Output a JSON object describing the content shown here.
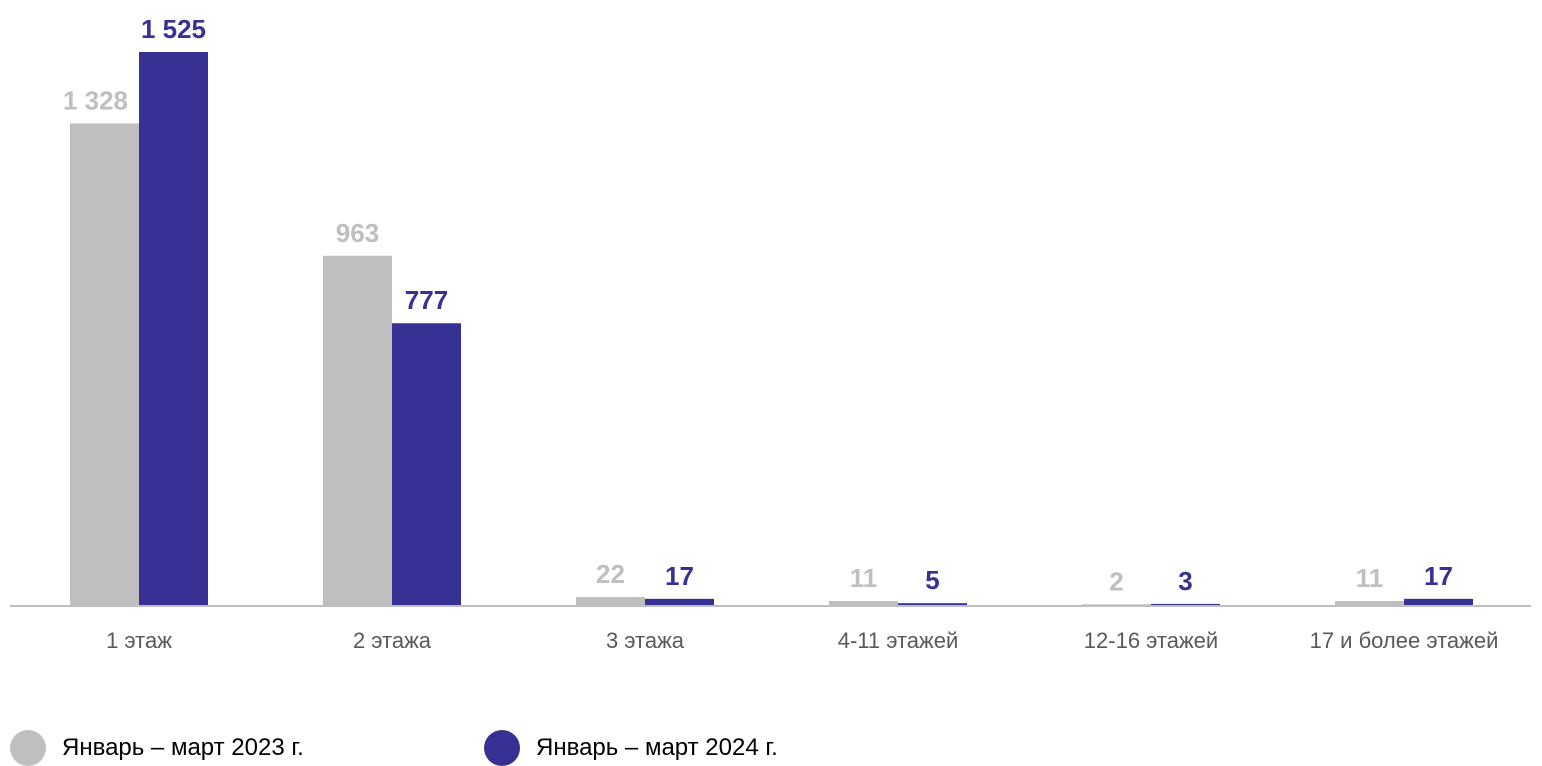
{
  "chart_data": {
    "type": "bar",
    "categories": [
      "1 этаж",
      "2 этажа",
      "3 этажа",
      "4-11 этажей",
      "12-16 этажей",
      "17 и более этажей"
    ],
    "series": [
      {
        "name": "Январь – март 2023 г.",
        "values": [
          1328,
          963,
          22,
          11,
          2,
          11
        ],
        "labels": [
          "1 328",
          "963",
          "22",
          "11",
          "2",
          "11"
        ],
        "color": "#bfbfbf"
      },
      {
        "name": "Январь – март 2024 г.",
        "values": [
          1525,
          777,
          17,
          5,
          3,
          17
        ],
        "labels": [
          "1 525",
          "777",
          "17",
          "5",
          "3",
          "17"
        ],
        "color": "#363193"
      }
    ],
    "title": "",
    "xlabel": "",
    "ylabel": "",
    "ylim": [
      0,
      1525
    ],
    "grid": false,
    "legend_position": "bottom-left",
    "axis_color": "#bfbfbf",
    "tick_label_color": "#595959"
  }
}
